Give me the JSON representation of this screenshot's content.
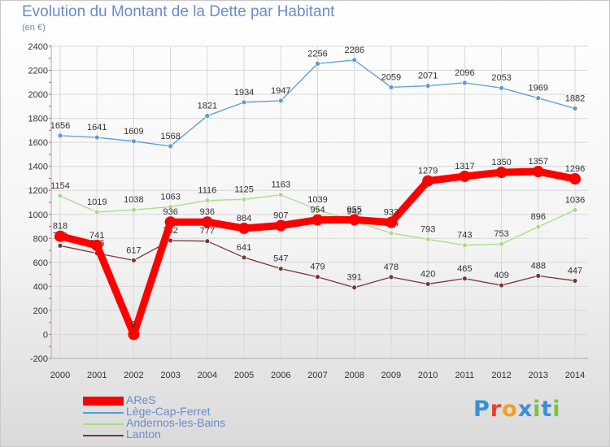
{
  "header": {
    "title": "Evolution du Montant de la Dette par Habitant",
    "subtitle": "(en €)"
  },
  "logo": {
    "letters": [
      "P",
      "r",
      "o",
      "x",
      "i",
      "t",
      "i"
    ],
    "colors": [
      "#3a8fd6",
      "#e8402a",
      "#f0a020",
      "#3a8fd6",
      "#7cc242",
      "#3a8fd6",
      "#7cc242"
    ]
  },
  "chart_data": {
    "type": "line",
    "x": [
      "2000",
      "2001",
      "2002",
      "2003",
      "2004",
      "2005",
      "2006",
      "2007",
      "2008",
      "2009",
      "2010",
      "2011",
      "2012",
      "2013",
      "2014"
    ],
    "ylim": [
      -200,
      2400
    ],
    "yticks": [
      "2400",
      "2200",
      "2000",
      "1800",
      "1600",
      "1400",
      "1200",
      "1000",
      "800",
      "600",
      "400",
      "200",
      "0",
      "-200"
    ],
    "grid": true,
    "legend_position": "bottom-left",
    "series": [
      {
        "name": "Lège-Cap-Ferret",
        "color": "#5b9bd5",
        "values": [
          1656,
          1641,
          1609,
          1568,
          1821,
          1934,
          1947,
          2256,
          2286,
          2059,
          2071,
          2096,
          2053,
          1969,
          1882
        ],
        "labels": [
          "1656",
          "1641",
          "1609",
          "1568",
          "1821",
          "1934",
          "1947",
          "2256",
          "2286",
          "2059",
          "2071",
          "2096",
          "2053",
          "1969",
          "1882"
        ]
      },
      {
        "name": "Andernos-les-Bains",
        "color": "#a8dc82",
        "values": [
          1154,
          1019,
          1038,
          1063,
          1116,
          1125,
          1163,
          1039,
          942,
          844,
          793,
          743,
          753,
          896,
          1036
        ],
        "labels": [
          "1154",
          "1019",
          "1038",
          "1063",
          "1116",
          "1125",
          "1163",
          "1039",
          "942",
          "844",
          "793",
          "743",
          "753",
          "896",
          "1036"
        ]
      },
      {
        "name": "Lanton",
        "color": "#7a3535",
        "values": [
          739,
          676,
          617,
          782,
          777,
          641,
          547,
          479,
          391,
          478,
          420,
          465,
          409,
          488,
          447
        ],
        "labels": [
          "739",
          "676",
          "617",
          "782",
          "777",
          "641",
          "547",
          "479",
          "391",
          "478",
          "420",
          "465",
          "409",
          "488",
          "447"
        ]
      },
      {
        "name": "AReS",
        "color": "#ff0000",
        "values": [
          818,
          741,
          0,
          936,
          936,
          884,
          907,
          954,
          955,
          933,
          1279,
          1317,
          1350,
          1357,
          1296
        ],
        "labels": [
          "818",
          "741",
          "0",
          "936",
          "936",
          "884",
          "907",
          "954",
          "955",
          "933",
          "1279",
          "1317",
          "1350",
          "1357",
          "1296"
        ]
      }
    ]
  },
  "legend": [
    {
      "name": "AReS",
      "color": "#ff0000",
      "thick": true
    },
    {
      "name": "Lège-Cap-Ferret",
      "color": "#5b9bd5",
      "thick": false
    },
    {
      "name": "Andernos-les-Bains",
      "color": "#a8dc82",
      "thick": false
    },
    {
      "name": "Lanton",
      "color": "#7a3535",
      "thick": false
    }
  ]
}
